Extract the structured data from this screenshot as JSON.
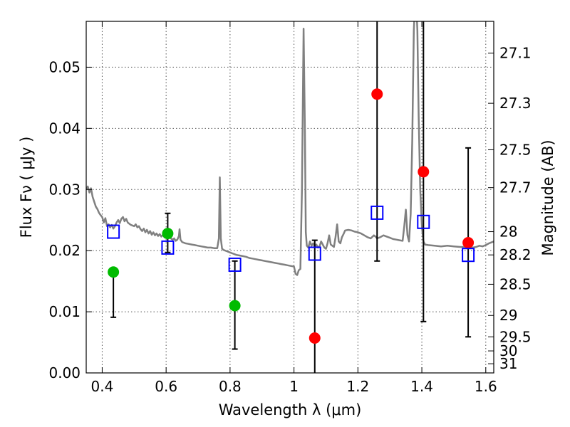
{
  "chart_data": {
    "type": "scatter",
    "xlabel": "Wavelength  λ (μm)",
    "ylabel": "Flux  Fν  ( μJy )",
    "ylabel_right": "Magnitude (AB)",
    "xlim": [
      0.35,
      1.625
    ],
    "ylim": [
      0.0,
      0.0575
    ],
    "grid": true,
    "x_ticks": [
      0.4,
      0.6,
      0.8,
      1.0,
      1.2,
      1.4,
      1.6
    ],
    "x_tick_labels": [
      "0.4",
      "0.6",
      "0.8",
      "1",
      "1.2",
      "1.4",
      "1.6"
    ],
    "y_ticks": [
      0.0,
      0.01,
      0.02,
      0.03,
      0.04,
      0.05
    ],
    "y_tick_labels": [
      "0.00",
      "0.01",
      "0.02",
      "0.03",
      "0.04",
      "0.05"
    ],
    "right_ticks": [
      {
        "label": "27.1",
        "flux": 0.0523
      },
      {
        "label": "27.3",
        "flux": 0.0441
      },
      {
        "label": "27.5",
        "flux": 0.0365
      },
      {
        "label": "27.7",
        "flux": 0.0303
      },
      {
        "label": "28",
        "flux": 0.0231
      },
      {
        "label": "28.2",
        "flux": 0.0193
      },
      {
        "label": "28.5",
        "flux": 0.0145
      },
      {
        "label": "29",
        "flux": 0.0094
      },
      {
        "label": "29.5",
        "flux": 0.0059
      },
      {
        "label": "30",
        "flux": 0.0036
      },
      {
        "label": "31",
        "flux": 0.0015
      }
    ],
    "series": [
      {
        "kind": "spectrum",
        "color": "#808080",
        "points": [
          [
            0.35,
            0.03
          ],
          [
            0.355,
            0.0305
          ],
          [
            0.36,
            0.0295
          ],
          [
            0.365,
            0.0302
          ],
          [
            0.37,
            0.0288
          ],
          [
            0.375,
            0.028
          ],
          [
            0.38,
            0.0272
          ],
          [
            0.385,
            0.0268
          ],
          [
            0.39,
            0.0262
          ],
          [
            0.395,
            0.0258
          ],
          [
            0.4,
            0.0255
          ],
          [
            0.405,
            0.0246
          ],
          [
            0.41,
            0.0253
          ],
          [
            0.415,
            0.024
          ],
          [
            0.42,
            0.0243
          ],
          [
            0.425,
            0.0238
          ],
          [
            0.43,
            0.0242
          ],
          [
            0.435,
            0.0236
          ],
          [
            0.44,
            0.024
          ],
          [
            0.445,
            0.0246
          ],
          [
            0.45,
            0.025
          ],
          [
            0.455,
            0.0245
          ],
          [
            0.46,
            0.0252
          ],
          [
            0.465,
            0.0255
          ],
          [
            0.47,
            0.0248
          ],
          [
            0.475,
            0.0252
          ],
          [
            0.48,
            0.0246
          ],
          [
            0.49,
            0.0242
          ],
          [
            0.5,
            0.024
          ],
          [
            0.505,
            0.0243
          ],
          [
            0.51,
            0.0238
          ],
          [
            0.515,
            0.024
          ],
          [
            0.52,
            0.0235
          ],
          [
            0.525,
            0.0232
          ],
          [
            0.53,
            0.0236
          ],
          [
            0.535,
            0.023
          ],
          [
            0.54,
            0.0234
          ],
          [
            0.545,
            0.0228
          ],
          [
            0.55,
            0.0232
          ],
          [
            0.555,
            0.0226
          ],
          [
            0.56,
            0.023
          ],
          [
            0.565,
            0.0225
          ],
          [
            0.57,
            0.0228
          ],
          [
            0.575,
            0.0224
          ],
          [
            0.58,
            0.0227
          ],
          [
            0.585,
            0.0223
          ],
          [
            0.59,
            0.0226
          ],
          [
            0.595,
            0.0222
          ],
          [
            0.6,
            0.0224
          ],
          [
            0.605,
            0.022
          ],
          [
            0.61,
            0.0222
          ],
          [
            0.62,
            0.0218
          ],
          [
            0.625,
            0.022
          ],
          [
            0.63,
            0.0216
          ],
          [
            0.635,
            0.0218
          ],
          [
            0.64,
            0.0224
          ],
          [
            0.642,
            0.0235
          ],
          [
            0.645,
            0.0218
          ],
          [
            0.65,
            0.0214
          ],
          [
            0.66,
            0.0212
          ],
          [
            0.67,
            0.0211
          ],
          [
            0.68,
            0.021
          ],
          [
            0.69,
            0.0209
          ],
          [
            0.7,
            0.0208
          ],
          [
            0.71,
            0.0207
          ],
          [
            0.72,
            0.0206
          ],
          [
            0.73,
            0.0205
          ],
          [
            0.74,
            0.0205
          ],
          [
            0.75,
            0.0204
          ],
          [
            0.76,
            0.0204
          ],
          [
            0.765,
            0.022
          ],
          [
            0.768,
            0.032
          ],
          [
            0.771,
            0.022
          ],
          [
            0.775,
            0.0203
          ],
          [
            0.78,
            0.0201
          ],
          [
            0.79,
            0.0199
          ],
          [
            0.8,
            0.0197
          ],
          [
            0.81,
            0.0195
          ],
          [
            0.82,
            0.0193
          ],
          [
            0.83,
            0.0192
          ],
          [
            0.84,
            0.0191
          ],
          [
            0.85,
            0.019
          ],
          [
            0.86,
            0.0188
          ],
          [
            0.87,
            0.0187
          ],
          [
            0.88,
            0.0186
          ],
          [
            0.89,
            0.0185
          ],
          [
            0.9,
            0.0184
          ],
          [
            0.91,
            0.0183
          ],
          [
            0.92,
            0.0182
          ],
          [
            0.93,
            0.0181
          ],
          [
            0.94,
            0.018
          ],
          [
            0.95,
            0.0179
          ],
          [
            0.96,
            0.0178
          ],
          [
            0.97,
            0.0177
          ],
          [
            0.98,
            0.0176
          ],
          [
            0.99,
            0.0175
          ],
          [
            1.0,
            0.0174
          ],
          [
            1.005,
            0.0162
          ],
          [
            1.01,
            0.016
          ],
          [
            1.015,
            0.0168
          ],
          [
            1.02,
            0.017
          ],
          [
            1.025,
            0.03
          ],
          [
            1.03,
            0.0563
          ],
          [
            1.034,
            0.04
          ],
          [
            1.037,
            0.023
          ],
          [
            1.04,
            0.0208
          ],
          [
            1.045,
            0.0205
          ],
          [
            1.05,
            0.0215
          ],
          [
            1.055,
            0.0208
          ],
          [
            1.06,
            0.0212
          ],
          [
            1.065,
            0.0206
          ],
          [
            1.07,
            0.021
          ],
          [
            1.075,
            0.0205
          ],
          [
            1.08,
            0.0207
          ],
          [
            1.085,
            0.0215
          ],
          [
            1.09,
            0.021
          ],
          [
            1.095,
            0.0205
          ],
          [
            1.1,
            0.0203
          ],
          [
            1.105,
            0.0212
          ],
          [
            1.11,
            0.0225
          ],
          [
            1.115,
            0.021
          ],
          [
            1.12,
            0.0208
          ],
          [
            1.125,
            0.0206
          ],
          [
            1.13,
            0.0222
          ],
          [
            1.135,
            0.0243
          ],
          [
            1.14,
            0.0215
          ],
          [
            1.145,
            0.0212
          ],
          [
            1.15,
            0.0222
          ],
          [
            1.155,
            0.0227
          ],
          [
            1.16,
            0.0233
          ],
          [
            1.17,
            0.0234
          ],
          [
            1.18,
            0.0233
          ],
          [
            1.19,
            0.0231
          ],
          [
            1.2,
            0.023
          ],
          [
            1.21,
            0.0228
          ],
          [
            1.22,
            0.0225
          ],
          [
            1.23,
            0.0222
          ],
          [
            1.24,
            0.022
          ],
          [
            1.25,
            0.0225
          ],
          [
            1.255,
            0.0223
          ],
          [
            1.26,
            0.022
          ],
          [
            1.27,
            0.0222
          ],
          [
            1.28,
            0.0225
          ],
          [
            1.29,
            0.0223
          ],
          [
            1.3,
            0.0221
          ],
          [
            1.31,
            0.0219
          ],
          [
            1.32,
            0.0218
          ],
          [
            1.33,
            0.0217
          ],
          [
            1.34,
            0.0216
          ],
          [
            1.345,
            0.024
          ],
          [
            1.35,
            0.0267
          ],
          [
            1.355,
            0.0225
          ],
          [
            1.36,
            0.0215
          ],
          [
            1.365,
            0.026
          ],
          [
            1.37,
            0.038
          ],
          [
            1.375,
            0.056
          ],
          [
            1.378,
            0.06
          ],
          [
            1.38,
            0.06
          ],
          [
            1.383,
            0.06
          ],
          [
            1.386,
            0.056
          ],
          [
            1.39,
            0.042
          ],
          [
            1.395,
            0.03
          ],
          [
            1.4,
            0.024
          ],
          [
            1.405,
            0.0215
          ],
          [
            1.41,
            0.021
          ],
          [
            1.42,
            0.0209
          ],
          [
            1.44,
            0.0208
          ],
          [
            1.46,
            0.0207
          ],
          [
            1.48,
            0.0208
          ],
          [
            1.5,
            0.0207
          ],
          [
            1.52,
            0.0206
          ],
          [
            1.54,
            0.0206
          ],
          [
            1.56,
            0.0205
          ],
          [
            1.57,
            0.0206
          ],
          [
            1.58,
            0.0208
          ],
          [
            1.59,
            0.0207
          ],
          [
            1.6,
            0.0209
          ],
          [
            1.61,
            0.0212
          ],
          [
            1.625,
            0.0215
          ]
        ]
      },
      {
        "kind": "points",
        "color": "#00bb00",
        "points": [
          {
            "x": 0.435,
            "y": 0.0165,
            "yerr_low": 0.0091,
            "yerr_high": null
          },
          {
            "x": 0.605,
            "y": 0.0228,
            "yerr_low": 0.0197,
            "yerr_high": 0.0261
          },
          {
            "x": 0.815,
            "y": 0.011,
            "yerr_low": 0.0039,
            "yerr_high": 0.0183
          }
        ]
      },
      {
        "kind": "points",
        "color": "#ff0000",
        "points": [
          {
            "x": 1.065,
            "y": 0.0057,
            "yerr_low": 0.0,
            "yerr_high": 0.0217
          },
          {
            "x": 1.26,
            "y": 0.0456,
            "yerr_low": 0.0183,
            "yerr_high": 0.0575
          },
          {
            "x": 1.405,
            "y": 0.0329,
            "yerr_low": 0.0084,
            "yerr_high": 0.0575
          },
          {
            "x": 1.545,
            "y": 0.0213,
            "yerr_low": 0.0059,
            "yerr_high": 0.0368
          }
        ]
      },
      {
        "kind": "model_boxes",
        "color": "#0000ff",
        "points": [
          {
            "x": 0.435,
            "y": 0.0231
          },
          {
            "x": 0.605,
            "y": 0.0205
          },
          {
            "x": 0.815,
            "y": 0.0177
          },
          {
            "x": 1.065,
            "y": 0.0195
          },
          {
            "x": 1.26,
            "y": 0.0262
          },
          {
            "x": 1.405,
            "y": 0.0247
          },
          {
            "x": 1.545,
            "y": 0.0193
          }
        ]
      }
    ]
  }
}
